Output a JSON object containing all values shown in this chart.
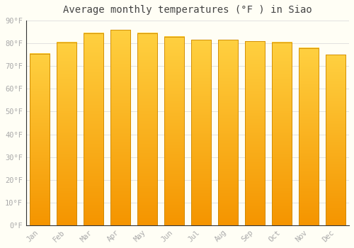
{
  "title": "Average monthly temperatures (°F ) in Siao",
  "months": [
    "Jan",
    "Feb",
    "Mar",
    "Apr",
    "May",
    "Jun",
    "Jul",
    "Aug",
    "Sep",
    "Oct",
    "Nov",
    "Dec"
  ],
  "values": [
    75.5,
    80.5,
    84.5,
    86.0,
    84.5,
    83.0,
    81.5,
    81.5,
    81.0,
    80.5,
    78.0,
    75.0
  ],
  "bar_color_top": "#FFD040",
  "bar_color_bottom": "#F59500",
  "bar_edge_color": "#CC8800",
  "ylim": [
    0,
    90
  ],
  "yticks": [
    0,
    10,
    20,
    30,
    40,
    50,
    60,
    70,
    80,
    90
  ],
  "ytick_labels": [
    "0°F",
    "10°F",
    "20°F",
    "30°F",
    "40°F",
    "50°F",
    "60°F",
    "70°F",
    "80°F",
    "90°F"
  ],
  "bg_color": "#FFFEF5",
  "grid_color": "#DDDDDD",
  "title_fontsize": 10,
  "tick_fontsize": 7.5,
  "tick_color": "#AAAAAA",
  "font_family": "monospace",
  "bar_width": 0.75,
  "figsize": [
    5.0,
    3.5
  ],
  "dpi": 100
}
